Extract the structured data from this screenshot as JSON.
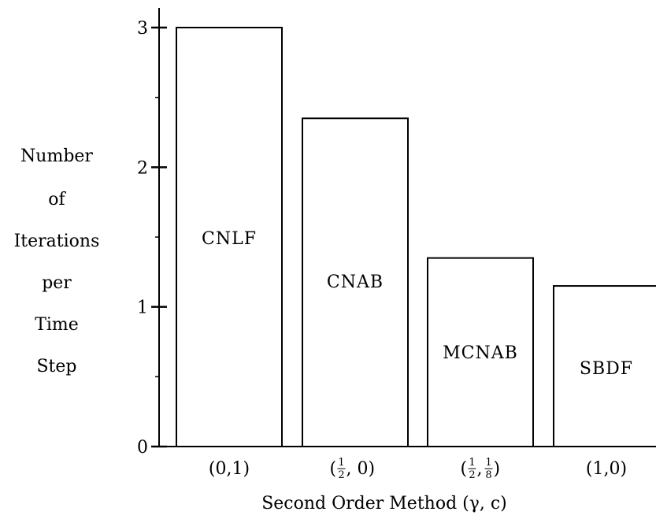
{
  "chart_data": {
    "type": "bar",
    "xlabel": "Second Order Method (γ, c)",
    "ylabel_lines": [
      "Number",
      "of",
      "Iterations",
      "per",
      "Time",
      "Step"
    ],
    "ylim": [
      0,
      3
    ],
    "yticks": [
      "0",
      "1",
      "2",
      "3"
    ],
    "grid": false,
    "bars": [
      {
        "name": "CNLF",
        "value": 3.0,
        "category": "(0,1)",
        "cat_num": "",
        "cat_den": "",
        "cat_num2": "",
        "cat_den2": "",
        "cat_suffix": ""
      },
      {
        "name": "CNAB",
        "value": 2.35,
        "category": "",
        "cat_num": "1",
        "cat_den": "2",
        "cat_num2": "",
        "cat_den2": "",
        "cat_suffix": ", 0)"
      },
      {
        "name": "MCNAB",
        "value": 1.35,
        "category": "",
        "cat_num": "1",
        "cat_den": "2",
        "cat_num2": "1",
        "cat_den2": "8",
        "cat_suffix": ""
      },
      {
        "name": "SBDF",
        "value": 1.15,
        "category": "(1,0)",
        "cat_num": "",
        "cat_den": "",
        "cat_num2": "",
        "cat_den2": "",
        "cat_suffix": ""
      }
    ]
  }
}
